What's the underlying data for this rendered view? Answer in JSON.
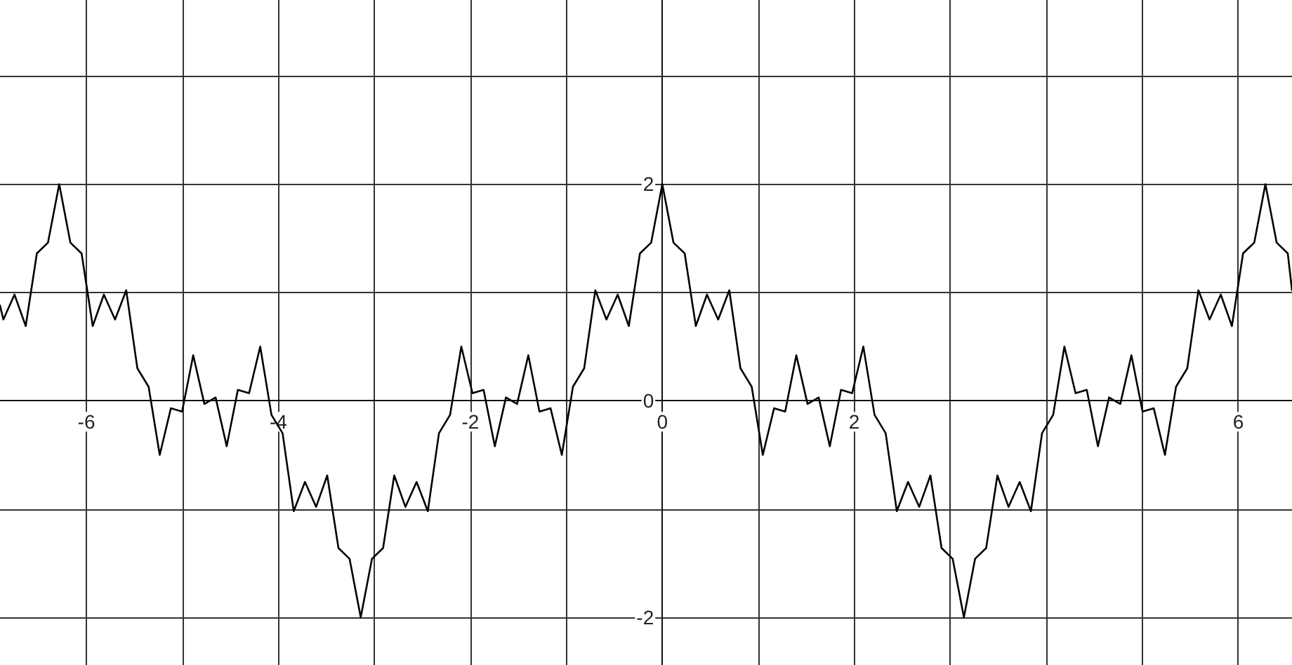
{
  "chart_data": {
    "type": "line",
    "x": [
      -6.9,
      -6.865,
      -6.749,
      -6.632,
      -6.516,
      -6.4,
      -6.283,
      -6.167,
      -6.05,
      -5.934,
      -5.818,
      -5.701,
      -5.585,
      -5.469,
      -5.352,
      -5.236,
      -5.12,
      -5.003,
      -4.887,
      -4.771,
      -4.654,
      -4.538,
      -4.422,
      -4.305,
      -4.189,
      -4.072,
      -3.956,
      -3.84,
      -3.723,
      -3.607,
      -3.491,
      -3.374,
      -3.258,
      -3.142,
      -3.025,
      -2.909,
      -2.793,
      -2.676,
      -2.56,
      -2.443,
      -2.327,
      -2.211,
      -2.094,
      -1.978,
      -1.862,
      -1.745,
      -1.629,
      -1.513,
      -1.396,
      -1.28,
      -1.164,
      -1.047,
      -0.931,
      -0.814,
      -0.698,
      -0.582,
      -0.465,
      -0.349,
      -0.233,
      -0.116,
      0,
      0.116,
      0.233,
      0.349,
      0.465,
      0.582,
      0.698,
      0.814,
      0.931,
      1.047,
      1.164,
      1.28,
      1.396,
      1.513,
      1.629,
      1.745,
      1.862,
      1.978,
      2.094,
      2.211,
      2.327,
      2.443,
      2.56,
      2.676,
      2.793,
      2.909,
      3.025,
      3.142,
      3.258,
      3.374,
      3.491,
      3.607,
      3.723,
      3.84,
      3.956,
      4.072,
      4.189,
      4.305,
      4.422,
      4.538,
      4.654,
      4.771,
      4.887,
      5.003,
      5.12,
      5.236,
      5.352,
      5.469,
      5.585,
      5.701,
      5.818,
      5.934,
      6.05,
      6.167,
      6.283,
      6.4,
      6.516,
      6.56
    ],
    "series": [
      {
        "color": "#000000",
        "values": [
          0.88,
          0.75,
          0.98,
          0.69,
          1.36,
          1.46,
          2,
          1.46,
          1.36,
          0.69,
          0.98,
          0.75,
          1.02,
          0.3,
          0.13,
          -0.5,
          -0.07,
          -0.1,
          0.42,
          -0.03,
          0.03,
          -0.42,
          0.1,
          0.07,
          0.5,
          -0.13,
          -0.3,
          -1.02,
          -0.75,
          -0.98,
          -0.69,
          -1.36,
          -1.46,
          -2,
          -1.46,
          -1.36,
          -0.69,
          -0.98,
          -0.75,
          -1.02,
          -0.3,
          -0.13,
          0.5,
          0.07,
          0.1,
          -0.42,
          0.03,
          -0.03,
          0.42,
          -0.1,
          -0.07,
          -0.5,
          0.13,
          0.3,
          1.02,
          0.75,
          0.98,
          0.69,
          1.36,
          1.46,
          2,
          1.46,
          1.36,
          0.69,
          0.98,
          0.75,
          1.02,
          0.3,
          0.13,
          -0.5,
          -0.07,
          -0.1,
          0.42,
          -0.03,
          0.03,
          -0.42,
          0.1,
          0.07,
          0.5,
          -0.13,
          -0.3,
          -1.02,
          -0.75,
          -0.98,
          -0.69,
          -1.36,
          -1.46,
          -2,
          -1.46,
          -1.36,
          -0.69,
          -0.98,
          -0.75,
          -1.02,
          -0.3,
          -0.13,
          0.5,
          0.07,
          0.1,
          -0.42,
          0.03,
          -0.03,
          0.42,
          -0.1,
          -0.07,
          -0.5,
          0.13,
          0.3,
          1.02,
          0.75,
          0.98,
          0.69,
          1.36,
          1.46,
          2,
          1.46,
          1.36,
          1.02
        ]
      }
    ],
    "xlim": [
      -6.9,
      6.56
    ],
    "xticks": [
      -6,
      {
        "value": -5,
        "label": null
      },
      -4,
      {
        "value": -3,
        "label": null
      },
      -2,
      {
        "value": -1,
        "label": null
      },
      0,
      {
        "value": 1,
        "label": null
      },
      2,
      {
        "value": 3,
        "label": null
      },
      {
        "value": 4,
        "label": null
      },
      {
        "value": 5,
        "label": null
      },
      6
    ],
    "ylim": [
      -2.44,
      3.7
    ],
    "yticks": [
      -2,
      {
        "value": -1,
        "label": null
      },
      0,
      {
        "value": 1,
        "label": null
      },
      2,
      {
        "value": 3,
        "label": null
      }
    ],
    "grid": true
  }
}
